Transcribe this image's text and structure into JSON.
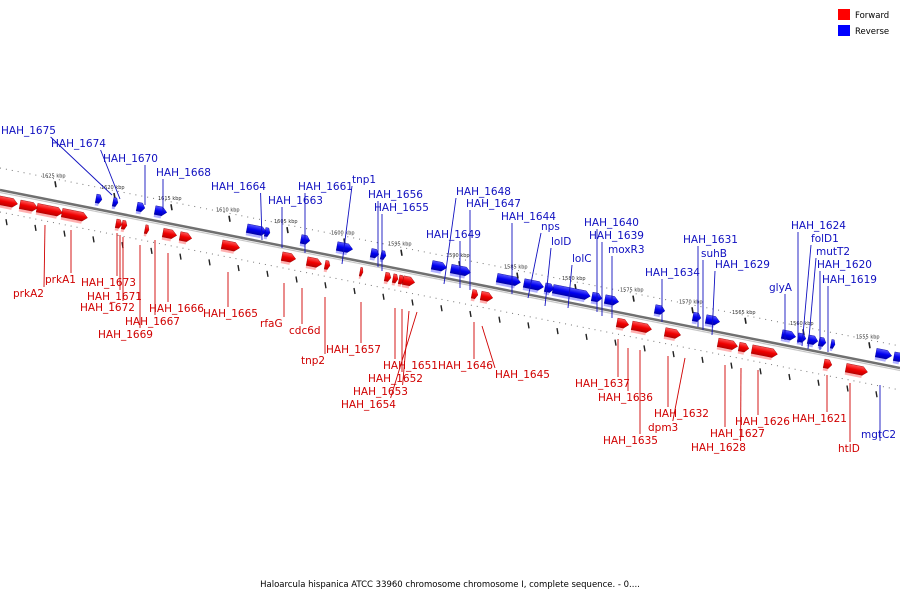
{
  "legend": {
    "forward_label": "Forward",
    "reverse_label": "Reverse",
    "forward_color": "#ff0000",
    "reverse_color": "#0000ff"
  },
  "colors": {
    "forward_text": "#d00000",
    "reverse_text": "#1010c0",
    "backbone": "#7a7a7a"
  },
  "caption": "Haloarcula hispanica ATCC 33960 chromosome chromosome I, complete sequence. - 0....",
  "scale": {
    "ticks": [
      "1625 kbp",
      "1620 kbp",
      "1615 kbp",
      "1610 kbp",
      "1605 kbp",
      "1600 kbp",
      "1595 kbp",
      "1590 kbp",
      "1585 kbp",
      "1580 kbp",
      "1575 kbp",
      "1570 kbp",
      "1565 kbp",
      "1560 kbp",
      "1555 kbp"
    ]
  },
  "reverse_genes": [
    "HAH_1675",
    "HAH_1674",
    "HAH_1670",
    "HAH_1668",
    "HAH_1664",
    "HAH_1663",
    "HAH_1661",
    "tnp1",
    "HAH_1656",
    "HAH_1655",
    "HAH_1648",
    "HAH_1647",
    "HAH_1649",
    "HAH_1644",
    "nps",
    "lolD",
    "lolC",
    "HAH_1640",
    "HAH_1639",
    "moxR3",
    "HAH_1634",
    "HAH_1631",
    "suhB",
    "HAH_1629",
    "glyA",
    "HAH_1624",
    "folD1",
    "mutT2",
    "HAH_1620",
    "HAH_1619",
    "mgtC2"
  ],
  "forward_genes": [
    "prkA2",
    "prkA1",
    "HAH_1673",
    "HAH_1671",
    "HAH_1672",
    "HAH_1667",
    "HAH_1669",
    "HAH_1666",
    "HAH_1665",
    "rfaG",
    "cdc6d",
    "tnp2",
    "HAH_1657",
    "HAH_1651",
    "HAH_1652",
    "HAH_1653",
    "HAH_1654",
    "HAH_1646",
    "HAH_1645",
    "HAH_1637",
    "HAH_1636",
    "HAH_1635",
    "HAH_1632",
    "dpm3",
    "HAH_1627",
    "HAH_1628",
    "HAH_1626",
    "HAH_1621",
    "htlD"
  ]
}
